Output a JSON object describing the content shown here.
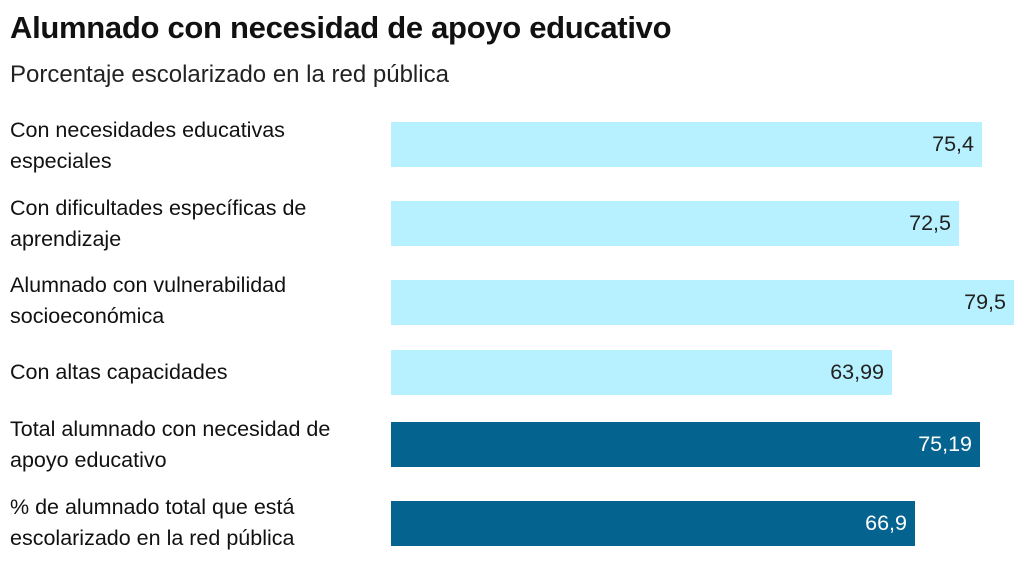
{
  "title": "Alumnado con necesidad de apoyo educativo",
  "subtitle": "Porcentaje escolarizado en la red pública",
  "colors": {
    "light_bar": "#b7f0fe",
    "dark_bar": "#05638f"
  },
  "chart_data": {
    "type": "bar",
    "orientation": "horizontal",
    "title": "Alumnado con necesidad de apoyo educativo",
    "subtitle": "Porcentaje escolarizado en la red pública",
    "xlim": [
      0,
      79.5
    ],
    "categories": [
      "Con necesidades educativas especiales",
      "Con dificultades específicas de aprendizaje",
      "Alumnado con vulnerabilidad socioeconómica",
      "Con altas capacidades",
      "Total alumnado con necesidad de apoyo educativo",
      "% de alumnado total que está escolarizado en la red pública"
    ],
    "rows": [
      {
        "label": "Con necesidades educativas especiales",
        "value": 75.4,
        "value_label": "75,4",
        "style": "light"
      },
      {
        "label": "Con dificultades específicas de aprendizaje",
        "value": 72.5,
        "value_label": "72,5",
        "style": "light"
      },
      {
        "label": "Alumnado con vulnerabilidad socioeconómica",
        "value": 79.5,
        "value_label": "79,5",
        "style": "light"
      },
      {
        "label": "Con altas capacidades",
        "value": 63.99,
        "value_label": "63,99",
        "style": "light"
      },
      {
        "label": "Total alumnado con necesidad de apoyo educativo",
        "value": 75.19,
        "value_label": "75,19",
        "style": "dark"
      },
      {
        "label": "% de alumnado total que está escolarizado en la red pública",
        "value": 66.9,
        "value_label": "66,9",
        "style": "dark"
      }
    ]
  }
}
